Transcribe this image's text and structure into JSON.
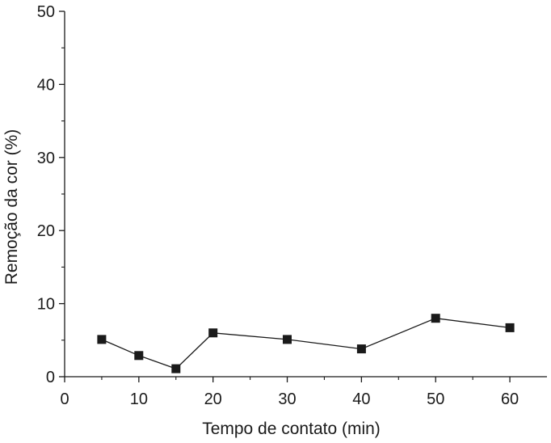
{
  "chart_data": {
    "type": "line",
    "title": "",
    "xlabel": "Tempo de contato (min)",
    "ylabel": "Remoção da cor (%)",
    "xlim": [
      0,
      65
    ],
    "ylim": [
      0,
      50
    ],
    "x_ticks": [
      0,
      10,
      20,
      30,
      40,
      50,
      60
    ],
    "y_ticks": [
      0,
      10,
      20,
      30,
      40,
      50
    ],
    "grid": false,
    "legend": "none",
    "marker": "square",
    "series": [
      {
        "x": [
          5,
          10,
          15,
          20,
          30,
          40,
          50,
          60
        ],
        "y": [
          5.1,
          2.9,
          1.1,
          6.0,
          5.1,
          3.8,
          8.0,
          6.7
        ]
      }
    ],
    "colors": {
      "line": "#1a1a1a",
      "marker": "#1a1a1a",
      "axis": "#1a1a1a"
    }
  }
}
